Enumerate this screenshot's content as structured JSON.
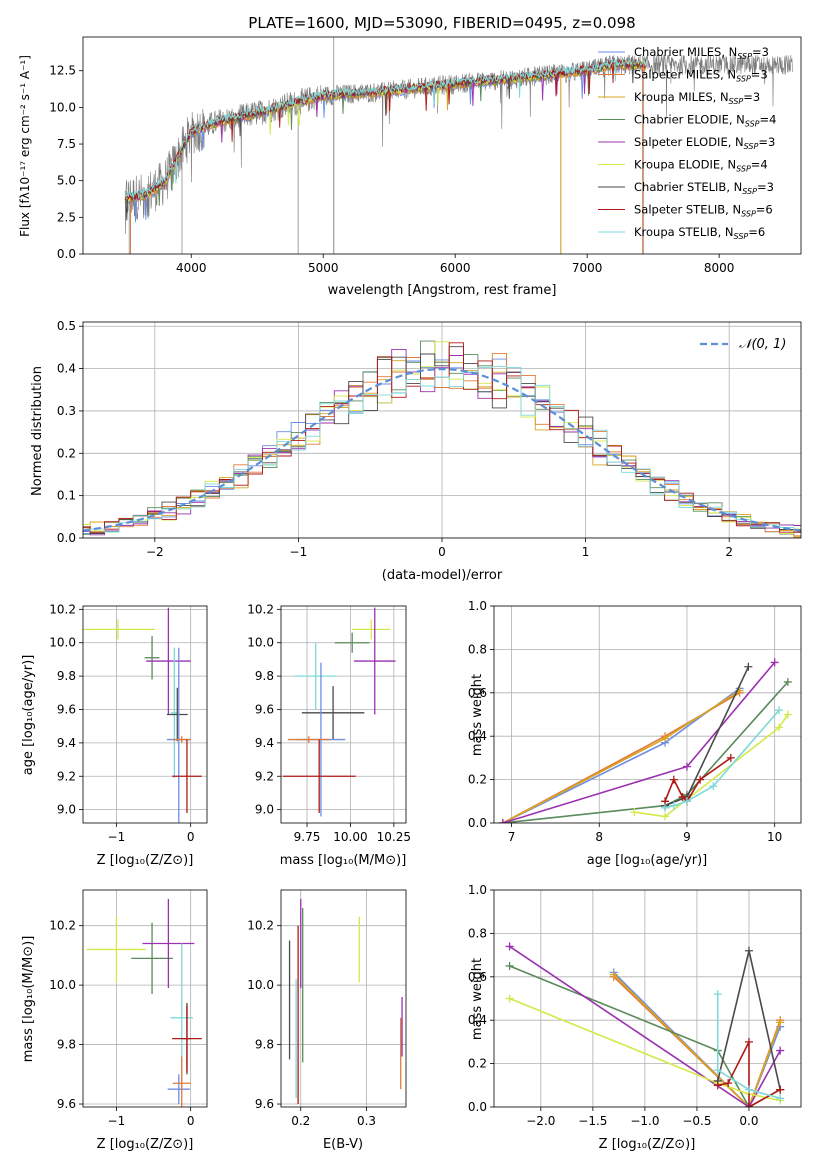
{
  "chart_data": [
    {
      "id": "spectrum",
      "type": "line",
      "title": "PLATE=1600, MJD=53090, FIBERID=0495, z=0.098",
      "xlabel": "wavelength [Angstrom, rest frame]",
      "ylabel": "Flux [fλ10⁻¹⁷ erg cm⁻² s⁻¹ A⁻¹]",
      "xlim": [
        3180,
        8620
      ],
      "ylim": [
        0,
        14.8
      ],
      "xticks": [
        4000,
        5000,
        6000,
        7000,
        8000
      ],
      "xtick_labels": [
        "4000",
        "5000",
        "6000",
        "7000",
        "8000"
      ],
      "yticks": [
        0,
        2.5,
        5,
        7.5,
        10,
        12.5
      ],
      "ytick_labels": [
        "0.0",
        "2.5",
        "5.0",
        "7.5",
        "10.0",
        "12.5"
      ],
      "grid": false,
      "legend_position": "right",
      "legend": [
        {
          "label": "Chabrier MILES, N_SSP=3",
          "text": "Chabrier MILES, N",
          "sub": "SSP",
          "suffix": "=3",
          "color": "#6b8ee8"
        },
        {
          "label": "Salpeter MILES, N_SSP=3",
          "text": "Salpeter MILES, N",
          "sub": "SSP",
          "suffix": "=3",
          "color": "#e07b3a"
        },
        {
          "label": "Kroupa MILES, N_SSP=3",
          "text": "Kroupa MILES, N",
          "sub": "SSP",
          "suffix": "=3",
          "color": "#d9a520"
        },
        {
          "label": "Chabrier ELODIE, N_SSP=4",
          "text": "Chabrier ELODIE, N",
          "sub": "SSP",
          "suffix": "=4",
          "color": "#5b8a5b"
        },
        {
          "label": "Salpeter ELODIE, N_SSP=3",
          "text": "Salpeter ELODIE, N",
          "sub": "SSP",
          "suffix": "=3",
          "color": "#9b30b0"
        },
        {
          "label": "Kroupa ELODIE, N_SSP=4",
          "text": "Kroupa ELODIE, N",
          "sub": "SSP",
          "suffix": "=4",
          "color": "#d4e84a"
        },
        {
          "label": "Chabrier STELIB, N_SSP=3",
          "text": "Chabrier STELIB, N",
          "sub": "SSP",
          "suffix": "=3",
          "color": "#4a4a4a"
        },
        {
          "label": "Salpeter STELIB, N_SSP=6",
          "text": "Salpeter STELIB, N",
          "sub": "SSP",
          "suffix": "=6",
          "color": "#b01818"
        },
        {
          "label": "Kroupa STELIB, N_SSP=6",
          "text": "Kroupa STELIB, N",
          "sub": "SSP",
          "suffix": "=6",
          "color": "#7fd8d8"
        }
      ],
      "continuum": {
        "x": [
          3500,
          3650,
          3800,
          4000,
          4200,
          4500,
          5000,
          5500,
          6000,
          6500,
          7000,
          7200,
          7450
        ],
        "y": [
          3.8,
          4.0,
          4.9,
          8.3,
          9.0,
          9.6,
          10.8,
          11.1,
          11.6,
          12.0,
          12.5,
          12.9,
          12.9
        ]
      }
    },
    {
      "id": "residuals",
      "type": "line",
      "xlabel": "(data-model)/error",
      "ylabel": "Normed distribution",
      "xlim": [
        -2.5,
        2.5
      ],
      "ylim": [
        0,
        0.51
      ],
      "xticks": [
        -2,
        -1,
        0,
        1,
        2
      ],
      "xtick_labels": [
        "−2",
        "−1",
        "0",
        "1",
        "2"
      ],
      "yticks": [
        0,
        0.1,
        0.2,
        0.3,
        0.4,
        0.5
      ],
      "ytick_labels": [
        "0.0",
        "0.1",
        "0.2",
        "0.3",
        "0.4",
        "0.5"
      ],
      "grid": true,
      "legend_position": "top-right",
      "legend_label": "𝒩(0, 1)",
      "reference_curve_color": "#5a8fd8"
    },
    {
      "id": "age-vs-z",
      "type": "scatter",
      "xlabel": "Z [log₁₀(Z/Z⊙)]",
      "ylabel": "age  [log₁₀(age/yr)]",
      "xlim": [
        -1.45,
        0.22
      ],
      "ylim": [
        8.92,
        10.22
      ],
      "xticks": [
        -1,
        0
      ],
      "xtick_labels": [
        "−1",
        "0"
      ],
      "yticks": [
        9.0,
        9.2,
        9.4,
        9.6,
        9.8,
        10.0,
        10.2
      ],
      "ytick_labels": [
        "9.0",
        "9.2",
        "9.4",
        "9.6",
        "9.8",
        "10.0",
        "10.2"
      ],
      "grid": true,
      "points": [
        {
          "x": -0.98,
          "xerr": 0.5,
          "y": 10.08,
          "yerr": 0.06,
          "color": "#d4e84a"
        },
        {
          "x": -0.52,
          "xerr": 0.1,
          "y": 9.91,
          "yerr": 0.13,
          "color": "#5b8a5b"
        },
        {
          "x": -0.3,
          "xerr": 0.3,
          "y": 9.89,
          "yerr": 0.32,
          "color": "#9b30b0"
        },
        {
          "x": -0.22,
          "xerr": 0.05,
          "y": 9.58,
          "yerr": 0.39,
          "color": "#7fd8d8"
        },
        {
          "x": -0.18,
          "xerr": 0.14,
          "y": 9.57,
          "yerr": 0.16,
          "color": "#4a4a4a"
        },
        {
          "x": -0.16,
          "xerr": 0.16,
          "y": 9.42,
          "yerr": 0.55,
          "color": "#6b8ee8"
        },
        {
          "x": -0.12,
          "xerr": 0.12,
          "y": 9.42,
          "yerr": 0.02,
          "color": "#e07b3a"
        },
        {
          "x": -0.05,
          "xerr": 0.2,
          "y": 9.2,
          "yerr": 0.22,
          "color": "#b01818"
        }
      ]
    },
    {
      "id": "age-vs-mass",
      "type": "scatter",
      "xlabel": "mass [log₁₀(M/M⊙)]",
      "xlim": [
        9.6,
        10.32
      ],
      "ylim": [
        8.92,
        10.22
      ],
      "xticks": [
        9.75,
        10.0,
        10.25
      ],
      "xtick_labels": [
        "9.75",
        "10.00",
        "10.25"
      ],
      "yticks": [
        9.0,
        9.2,
        9.4,
        9.6,
        9.8,
        10.0,
        10.2
      ],
      "ytick_labels": [
        "9.0",
        "9.2",
        "9.4",
        "9.6",
        "9.8",
        "10.0",
        "10.2"
      ],
      "grid": true,
      "points": [
        {
          "x": 10.12,
          "xerr": 0.11,
          "y": 10.08,
          "yerr": 0.06,
          "color": "#d4e84a"
        },
        {
          "x": 10.01,
          "xerr": 0.1,
          "y": 10.0,
          "yerr": 0.06,
          "color": "#5b8a5b"
        },
        {
          "x": 10.14,
          "xerr": 0.12,
          "y": 9.89,
          "yerr": 0.32,
          "color": "#9b30b0"
        },
        {
          "x": 9.8,
          "xerr": 0.12,
          "y": 9.8,
          "yerr": 0.2,
          "color": "#7fd8d8"
        },
        {
          "x": 9.9,
          "xerr": 0.18,
          "y": 9.58,
          "yerr": 0.16,
          "color": "#4a4a4a"
        },
        {
          "x": 9.83,
          "xerr": 0.14,
          "y": 9.42,
          "yerr": 0.46,
          "color": "#6b8ee8"
        },
        {
          "x": 9.76,
          "xerr": 0.12,
          "y": 9.42,
          "yerr": 0.02,
          "color": "#e07b3a"
        },
        {
          "x": 9.82,
          "xerr": 0.21,
          "y": 9.2,
          "yerr": 0.22,
          "color": "#b01818"
        }
      ]
    },
    {
      "id": "weight-vs-age",
      "type": "line",
      "xlabel": "age  [log₁₀(age/yr)]",
      "ylabel": "mass weight",
      "xlim": [
        6.8,
        10.3
      ],
      "ylim": [
        0,
        1.0
      ],
      "xticks": [
        7,
        8,
        9,
        10
      ],
      "xtick_labels": [
        "7",
        "8",
        "9",
        "10"
      ],
      "yticks": [
        0,
        0.2,
        0.4,
        0.6,
        0.8,
        1.0
      ],
      "ytick_labels": [
        "0.0",
        "0.2",
        "0.4",
        "0.6",
        "0.8",
        "1.0"
      ],
      "grid": true,
      "series": [
        {
          "color": "#6b8ee8",
          "x": [
            6.9,
            8.75,
            9.6
          ],
          "y": [
            0.0,
            0.37,
            0.62
          ]
        },
        {
          "color": "#e07b3a",
          "x": [
            6.9,
            8.75,
            9.6
          ],
          "y": [
            0.0,
            0.4,
            0.6
          ]
        },
        {
          "color": "#d9a520",
          "x": [
            6.9,
            8.75,
            9.6
          ],
          "y": [
            0.0,
            0.39,
            0.61
          ]
        },
        {
          "color": "#5b8a5b",
          "x": [
            6.9,
            8.75,
            9.0,
            10.15
          ],
          "y": [
            0.0,
            0.08,
            0.13,
            0.65
          ]
        },
        {
          "color": "#9b30b0",
          "x": [
            6.9,
            9.0,
            10.0
          ],
          "y": [
            0.0,
            0.26,
            0.74
          ]
        },
        {
          "color": "#d4e84a",
          "x": [
            8.4,
            8.75,
            10.05,
            10.15
          ],
          "y": [
            0.05,
            0.03,
            0.44,
            0.5
          ]
        },
        {
          "color": "#4a4a4a",
          "x": [
            8.75,
            9.0,
            9.7
          ],
          "y": [
            0.08,
            0.12,
            0.72
          ]
        },
        {
          "color": "#b01818",
          "x": [
            8.75,
            8.85,
            8.95,
            9.0,
            9.15,
            9.5
          ],
          "y": [
            0.1,
            0.2,
            0.12,
            0.1,
            0.2,
            0.3
          ]
        },
        {
          "color": "#7fd8d8",
          "x": [
            8.75,
            8.85,
            9.0,
            9.3,
            10.05
          ],
          "y": [
            0.07,
            0.08,
            0.1,
            0.17,
            0.52
          ]
        }
      ]
    },
    {
      "id": "mass-vs-z",
      "type": "scatter",
      "xlabel": "Z [log₁₀(Z/Z⊙)]",
      "ylabel": "mass [log₁₀(M/M⊙)]",
      "xlim": [
        -1.45,
        0.22
      ],
      "ylim": [
        9.59,
        10.32
      ],
      "xticks": [
        -1,
        0
      ],
      "xtick_labels": [
        "−1",
        "0"
      ],
      "yticks": [
        9.6,
        9.8,
        10.0,
        10.2
      ],
      "ytick_labels": [
        "9.6",
        "9.8",
        "10.0",
        "10.2"
      ],
      "grid": true,
      "points": [
        {
          "x": -1.0,
          "xerr": 0.4,
          "y": 10.12,
          "yerr": 0.11,
          "color": "#d4e84a"
        },
        {
          "x": -0.52,
          "xerr": 0.28,
          "y": 10.09,
          "yerr": 0.12,
          "color": "#5b8a5b"
        },
        {
          "x": -0.3,
          "xerr": 0.35,
          "y": 10.14,
          "yerr": 0.15,
          "color": "#9b30b0"
        },
        {
          "x": -0.12,
          "xerr": 0.15,
          "y": 9.89,
          "yerr": 0.25,
          "color": "#7fd8d8"
        },
        {
          "x": -0.05,
          "xerr": 0.05,
          "y": 9.82,
          "yerr": 0.12,
          "color": "#4a4a4a"
        },
        {
          "x": -0.16,
          "xerr": 0.15,
          "y": 9.65,
          "yerr": 0.05,
          "color": "#6b8ee8"
        },
        {
          "x": -0.12,
          "xerr": 0.12,
          "y": 9.67,
          "yerr": 0.09,
          "color": "#e07b3a"
        },
        {
          "x": -0.05,
          "xerr": 0.2,
          "y": 9.82,
          "yerr": 0.11,
          "color": "#b01818"
        }
      ]
    },
    {
      "id": "mass-vs-ebv",
      "type": "scatter",
      "xlabel": "E(B-V)",
      "xlim": [
        0.17,
        0.36
      ],
      "ylim": [
        9.59,
        10.32
      ],
      "xticks": [
        0.2,
        0.3
      ],
      "xtick_labels": [
        "0.2",
        "0.3"
      ],
      "yticks": [
        9.6,
        9.8,
        10.0,
        10.2
      ],
      "ytick_labels": [
        "9.6",
        "9.8",
        "10.0",
        "10.2"
      ],
      "grid": true,
      "points": [
        {
          "x": 0.289,
          "y": 10.12,
          "yerr": 0.11,
          "color": "#d4e84a"
        },
        {
          "x": 0.183,
          "y": 9.95,
          "yerr": 0.2,
          "color": "#4a4a4a"
        },
        {
          "x": 0.2,
          "y": 10.14,
          "yerr": 0.15,
          "color": "#9b30b0"
        },
        {
          "x": 0.193,
          "y": 9.82,
          "yerr": 0.2,
          "color": "#7fd8d8"
        },
        {
          "x": 0.196,
          "y": 9.9,
          "yerr": 0.3,
          "color": "#b01818"
        },
        {
          "x": 0.203,
          "y": 10.0,
          "yerr": 0.26,
          "color": "#5b8a5b"
        },
        {
          "x": 0.352,
          "y": 9.77,
          "yerr": 0.12,
          "color": "#e07b3a"
        },
        {
          "x": 0.354,
          "y": 9.86,
          "yerr": 0.1,
          "color": "#9b30b0"
        }
      ]
    },
    {
      "id": "weight-vs-z",
      "type": "line",
      "xlabel": "Z [log₁₀(Z/Z⊙)]",
      "ylabel": "mass weight",
      "xlim": [
        -2.45,
        0.5
      ],
      "ylim": [
        0,
        1.0
      ],
      "xticks": [
        -2.0,
        -1.5,
        -1.0,
        -0.5,
        0.0
      ],
      "xtick_labels": [
        "−2.0",
        "−1.5",
        "−1.0",
        "−0.5",
        "0.0"
      ],
      "yticks": [
        0,
        0.2,
        0.4,
        0.6,
        0.8,
        1.0
      ],
      "ytick_labels": [
        "0.0",
        "0.2",
        "0.4",
        "0.6",
        "0.8",
        "1.0"
      ],
      "grid": true,
      "series": [
        {
          "color": "#6b8ee8",
          "x": [
            -1.3,
            0.0,
            0.3
          ],
          "y": [
            0.62,
            0.0,
            0.37
          ]
        },
        {
          "color": "#e07b3a",
          "x": [
            -1.3,
            0.0,
            0.3
          ],
          "y": [
            0.6,
            0.0,
            0.4
          ]
        },
        {
          "color": "#d9a520",
          "x": [
            -1.3,
            0.0,
            0.3
          ],
          "y": [
            0.61,
            0.0,
            0.39
          ]
        },
        {
          "color": "#5b8a5b",
          "x": [
            -2.3,
            -0.3,
            0.0,
            0.3
          ],
          "y": [
            0.65,
            0.26,
            0.0,
            0.08
          ]
        },
        {
          "color": "#9b30b0",
          "x": [
            -2.3,
            0.0,
            0.3
          ],
          "y": [
            0.74,
            0.0,
            0.26
          ]
        },
        {
          "color": "#d4e84a",
          "x": [
            -2.3,
            -0.3,
            0.0,
            0.3
          ],
          "y": [
            0.5,
            0.11,
            0.06,
            0.03
          ]
        },
        {
          "color": "#4a4a4a",
          "x": [
            -0.3,
            0.0,
            0.3
          ],
          "y": [
            0.12,
            0.72,
            0.08
          ]
        },
        {
          "color": "#b01818",
          "x": [
            -0.3,
            -0.2,
            0.0,
            0.0,
            0.3
          ],
          "y": [
            0.1,
            0.11,
            0.3,
            0.0,
            0.08
          ]
        },
        {
          "color": "#7fd8d8",
          "x": [
            -0.3,
            -0.3,
            0.0,
            0.3
          ],
          "y": [
            0.52,
            0.17,
            0.08,
            0.04
          ]
        }
      ]
    }
  ]
}
